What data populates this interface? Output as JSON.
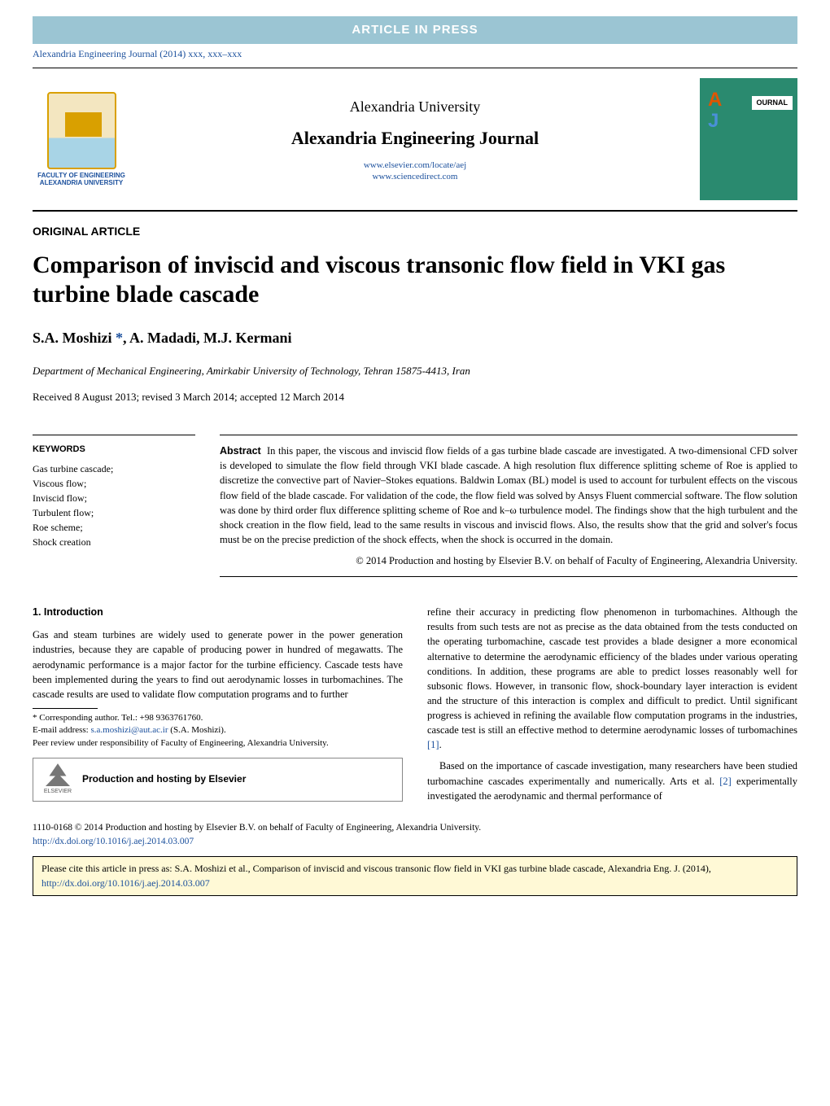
{
  "banner_text": "ARTICLE IN PRESS",
  "journal_ref": "Alexandria Engineering Journal (2014) xxx, xxx–xxx",
  "logo_caption_line1": "FACULTY OF ENGINEERING",
  "logo_caption_line2": "ALEXANDRIA UNIVERSITY",
  "university": "Alexandria University",
  "journal_name": "Alexandria Engineering Journal",
  "journal_link1": "www.elsevier.com/locate/aej",
  "journal_link2": "www.sciencedirect.com",
  "cover_label": "OURNAL",
  "article_type": "ORIGINAL ARTICLE",
  "title": "Comparison of inviscid and viscous transonic flow field in VKI gas turbine blade cascade",
  "authors_html": "S.A. Moshizi *, A. Madadi, M.J. Kermani",
  "author1": "S.A. Moshizi ",
  "author_star": "*",
  "author_rest": ", A. Madadi, M.J. Kermani",
  "affiliation": "Department of Mechanical Engineering, Amirkabir University of Technology, Tehran 15875-4413, Iran",
  "dates": "Received 8 August 2013; revised 3 March 2014; accepted 12 March 2014",
  "keywords_heading": "KEYWORDS",
  "keywords": [
    "Gas turbine cascade;",
    "Viscous flow;",
    "Inviscid flow;",
    "Turbulent flow;",
    "Roe scheme;",
    "Shock creation"
  ],
  "abstract_label": "Abstract",
  "abstract_body": "In this paper, the viscous and inviscid flow fields of a gas turbine blade cascade are investigated. A two-dimensional CFD solver is developed to simulate the flow field through VKI blade cascade. A high resolution flux difference splitting scheme of Roe is applied to discretize the convective part of Navier–Stokes equations. Baldwin Lomax (BL) model is used to account for turbulent effects on the viscous flow field of the blade cascade. For validation of the code, the flow field was solved by Ansys Fluent commercial software. The flow solution was done by third order flux difference splitting scheme of Roe and k–ω turbulence model. The findings show that the high turbulent and the shock creation in the flow field, lead to the same results in viscous and inviscid flows. Also, the results show that the grid and solver's focus must be on the precise prediction of the shock effects, when the shock is occurred in the domain.",
  "abstract_copyright": "© 2014 Production and hosting by Elsevier B.V. on behalf of Faculty of Engineering, Alexandria University.",
  "section1_heading": "1. Introduction",
  "intro_para1": "Gas and steam turbines are widely used to generate power in the power generation industries, because they are capable of producing power in hundred of megawatts. The aerodynamic performance is a major factor for the turbine efficiency. Cascade tests have been implemented during the years to find out aerodynamic losses in turbomachines. The cascade results are used to validate flow computation programs and to further",
  "footnote_corr": "* Corresponding author. Tel.: +98 9363761760.",
  "footnote_email_label": "E-mail address: ",
  "footnote_email": "s.a.moshizi@aut.ac.ir",
  "footnote_email_author": " (S.A. Moshizi).",
  "footnote_peer": "Peer review under responsibility of Faculty of Engineering, Alexandria University.",
  "elsevier_label": "ELSEVIER",
  "hosting_text": "Production and hosting by Elsevier",
  "col2_para1a": "refine their accuracy in predicting flow phenomenon in turbomachines. Although the results from such tests are not as precise as the data obtained from the tests conducted on the operating turbomachine, cascade test provides a blade designer a more economical alternative to determine the aerodynamic efficiency of the blades under various operating conditions. In addition, these programs are able to predict losses reasonably well for subsonic flows. However, in transonic flow, shock-boundary layer interaction is evident and the structure of this interaction is complex and difficult to predict. Until significant progress is achieved in refining the available flow computation programs in the industries, cascade test is still an effective method to determine aerodynamic losses of turbomachines ",
  "ref1": "[1]",
  "col2_para1b": ".",
  "col2_para2a": "Based on the importance of cascade investigation, many researchers have been studied turbomachine cascades experimentally and numerically. Arts et al. ",
  "ref2": "[2]",
  "col2_para2b": " experimentally investigated the aerodynamic and thermal performance of",
  "issn_line": "1110-0168 © 2014 Production and hosting by Elsevier B.V. on behalf of Faculty of Engineering, Alexandria University.",
  "doi_link": "http://dx.doi.org/10.1016/j.aej.2014.03.007",
  "citation_text_a": "Please cite this article in press as: S.A. Moshizi et al., Comparison of inviscid and viscous transonic flow field in VKI gas turbine blade cascade, Alexandria Eng. J. (2014), ",
  "citation_link": "http://dx.doi.org/10.1016/j.aej.2014.03.007",
  "colors": {
    "banner_bg": "#9bc5d3",
    "link": "#1a4f9c",
    "cover_bg": "#2a8a6f",
    "citation_bg": "#fff9d6"
  }
}
